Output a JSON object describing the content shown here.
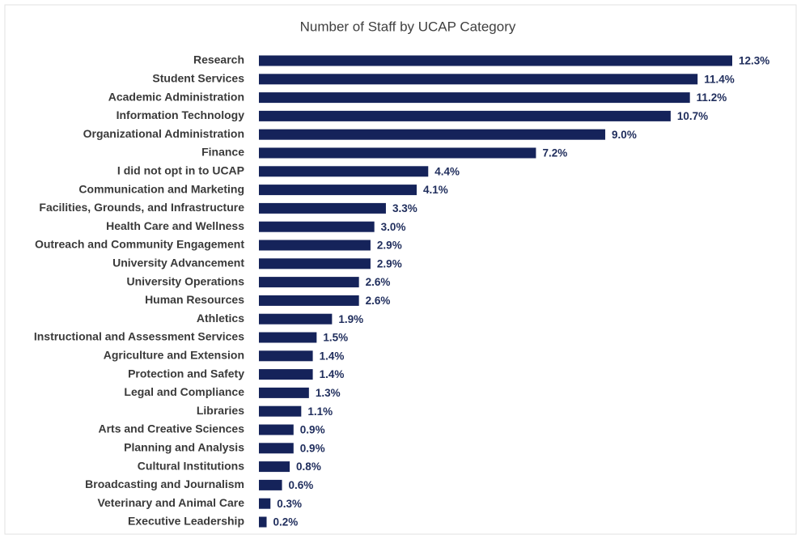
{
  "chart_data": {
    "type": "bar",
    "orientation": "horizontal",
    "title": "Number of Staff by UCAP Category",
    "color": "#15235a",
    "categories": [
      "Research",
      "Student Services",
      "Academic Administration",
      "Information Technology",
      "Organizational Administration",
      "Finance",
      "I did not opt in to UCAP",
      "Communication and Marketing",
      "Facilities, Grounds, and Infrastructure",
      "Health Care and Wellness",
      "Outreach and Community Engagement",
      "University Advancement",
      "University Operations",
      "Human Resources",
      "Athletics",
      "Instructional and Assessment Services",
      "Agriculture and Extension",
      "Protection and Safety",
      "Legal and Compliance",
      "Libraries",
      "Arts and Creative Sciences",
      "Planning and Analysis",
      "Cultural Institutions",
      "Broadcasting and Journalism",
      "Veterinary and Animal Care",
      "Executive Leadership"
    ],
    "values": [
      12.3,
      11.4,
      11.2,
      10.7,
      9.0,
      7.2,
      4.4,
      4.1,
      3.3,
      3.0,
      2.9,
      2.9,
      2.6,
      2.6,
      1.9,
      1.5,
      1.4,
      1.4,
      1.3,
      1.1,
      0.9,
      0.9,
      0.8,
      0.6,
      0.3,
      0.2
    ],
    "value_labels": [
      "12.3%",
      "11.4%",
      "11.2%",
      "10.7%",
      "9.0%",
      "7.2%",
      "4.4%",
      "4.1%",
      "3.3%",
      "3.0%",
      "2.9%",
      "2.9%",
      "2.6%",
      "2.6%",
      "1.9%",
      "1.5%",
      "1.4%",
      "1.4%",
      "1.3%",
      "1.1%",
      "0.9%",
      "0.9%",
      "0.8%",
      "0.6%",
      "0.3%",
      "0.2%"
    ]
  }
}
